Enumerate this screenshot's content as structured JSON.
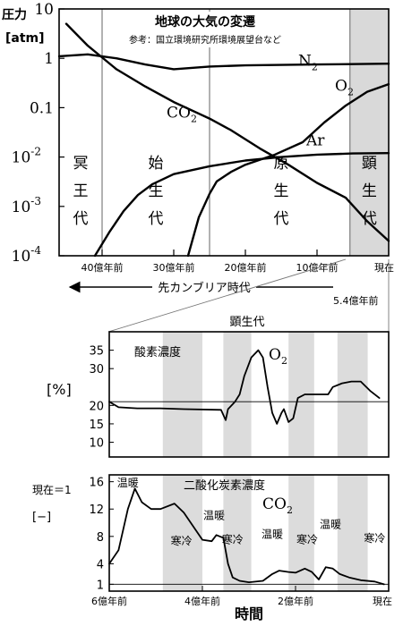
{
  "chart_data": [
    {
      "type": "line",
      "title": "地球の大気の変遷",
      "subtitle": "参考：国立環境研究所環境展望台など",
      "ylabel_line1": "圧力",
      "ylabel_line2": "[atm]",
      "y_scale": "log",
      "ylim": [
        0.0001,
        10
      ],
      "y_ticks": [
        {
          "value": 10,
          "base": "10",
          "exp": ""
        },
        {
          "value": 1,
          "base": "1",
          "exp": ""
        },
        {
          "value": 0.1,
          "base": "0.1",
          "exp": ""
        },
        {
          "value": 0.01,
          "base": "10",
          "exp": "-2"
        },
        {
          "value": 0.001,
          "base": "10",
          "exp": "-3"
        },
        {
          "value": 0.0001,
          "base": "10",
          "exp": "-4"
        }
      ],
      "xlim": [
        46,
        0
      ],
      "x_ticks": [
        {
          "value": 40,
          "label": "40億年前"
        },
        {
          "value": 30,
          "label": "30億年前"
        },
        {
          "value": 20,
          "label": "20億年前"
        },
        {
          "value": 10,
          "label": "10億年前"
        },
        {
          "value": 0,
          "label": "現在"
        }
      ],
      "era_boundaries": [
        40,
        25,
        5.4
      ],
      "eras": [
        {
          "name": "冥王代",
          "chars": [
            "冥",
            "王",
            "代"
          ],
          "x": 43
        },
        {
          "name": "始生代",
          "chars": [
            "始",
            "生",
            "代"
          ],
          "x": 32.5
        },
        {
          "name": "原生代",
          "chars": [
            "原",
            "生",
            "代"
          ],
          "x": 15
        },
        {
          "name": "顕生代",
          "chars": [
            "顕",
            "生",
            "代"
          ],
          "x": 2.7,
          "shaded": true
        }
      ],
      "arrow_label": "先カンブリア時代",
      "boundary_label": "5.4億年前",
      "series": [
        {
          "name": "N",
          "sub": "2",
          "points": [
            [
              46,
              1.1
            ],
            [
              42,
              1.2
            ],
            [
              38,
              1.0
            ],
            [
              34,
              0.75
            ],
            [
              30,
              0.6
            ],
            [
              25,
              0.68
            ],
            [
              20,
              0.72
            ],
            [
              10,
              0.75
            ],
            [
              0,
              0.78
            ]
          ]
        },
        {
          "name": "CO",
          "sub": "2",
          "points": [
            [
              45,
              5
            ],
            [
              42,
              1.8
            ],
            [
              38,
              0.6
            ],
            [
              34,
              0.27
            ],
            [
              30,
              0.13
            ],
            [
              25,
              0.06
            ],
            [
              22,
              0.035
            ],
            [
              18,
              0.015
            ],
            [
              14,
              0.007
            ],
            [
              10,
              0.003
            ],
            [
              6,
              0.0015
            ],
            [
              3,
              0.0005
            ],
            [
              0,
              0.0002
            ]
          ]
        },
        {
          "name": "O",
          "sub": "2",
          "points": [
            [
              28,
              0.0001
            ],
            [
              26.5,
              0.0006
            ],
            [
              25,
              0.0018
            ],
            [
              24,
              0.0032
            ],
            [
              22,
              0.005
            ],
            [
              20,
              0.007
            ],
            [
              16,
              0.011
            ],
            [
              12,
              0.02
            ],
            [
              9,
              0.05
            ],
            [
              6,
              0.11
            ],
            [
              3,
              0.21
            ],
            [
              0,
              0.3
            ]
          ]
        },
        {
          "name": "Ar",
          "sub": "",
          "points": [
            [
              41,
              0.0001
            ],
            [
              39,
              0.0003
            ],
            [
              37,
              0.0008
            ],
            [
              35,
              0.0017
            ],
            [
              33,
              0.0028
            ],
            [
              30,
              0.0045
            ],
            [
              25,
              0.0065
            ],
            [
              20,
              0.0085
            ],
            [
              15,
              0.01
            ],
            [
              10,
              0.0112
            ],
            [
              5,
              0.0118
            ],
            [
              0,
              0.012
            ]
          ]
        }
      ]
    },
    {
      "type": "line",
      "title": "顕生代",
      "series_label": "酸素濃度",
      "gas": "O",
      "gas_sub": "2",
      "ylabel": "[%]",
      "xlim": [
        6,
        0
      ],
      "ylim": [
        6,
        40
      ],
      "y_ticks": [
        35,
        30,
        20,
        15,
        10
      ],
      "reference_line": 21,
      "shaded_bands": [
        [
          4.85,
          4.0
        ],
        [
          3.55,
          2.95
        ],
        [
          2.15,
          1.6
        ],
        [
          1.1,
          0.45
        ]
      ],
      "series": [
        {
          "name": "酸素濃度",
          "points": [
            [
              6,
              21
            ],
            [
              5.8,
              19.5
            ],
            [
              5.4,
              19.2
            ],
            [
              4.9,
              19.2
            ],
            [
              4.4,
              19
            ],
            [
              3.6,
              18.8
            ],
            [
              3.5,
              16
            ],
            [
              3.45,
              19
            ],
            [
              3.3,
              21
            ],
            [
              3.2,
              23
            ],
            [
              3.1,
              28
            ],
            [
              2.95,
              33
            ],
            [
              2.8,
              35
            ],
            [
              2.7,
              33
            ],
            [
              2.6,
              25
            ],
            [
              2.5,
              18
            ],
            [
              2.4,
              15
            ],
            [
              2.3,
              18
            ],
            [
              2.25,
              19
            ],
            [
              2.15,
              15.5
            ],
            [
              2.05,
              16.5
            ],
            [
              1.95,
              22
            ],
            [
              1.8,
              23
            ],
            [
              1.3,
              23
            ],
            [
              1.2,
              25
            ],
            [
              1.0,
              26
            ],
            [
              0.8,
              26.5
            ],
            [
              0.6,
              26.5
            ],
            [
              0.4,
              24
            ],
            [
              0.2,
              22
            ]
          ]
        }
      ]
    },
    {
      "type": "line",
      "title": "二酸化炭素濃度",
      "gas": "CO",
      "gas_sub": "2",
      "ylabel_line1": "現在＝1",
      "ylabel_line2": "[−]",
      "xlim": [
        6,
        0
      ],
      "ylim": [
        0,
        17
      ],
      "y_ticks": [
        16,
        12,
        8,
        4,
        1
      ],
      "reference_line": 1,
      "x_ticks": [
        {
          "value": 6,
          "label": "6億年前"
        },
        {
          "value": 4,
          "label": "4億年前"
        },
        {
          "value": 2,
          "label": "2億年前"
        },
        {
          "value": 0,
          "label": "現在"
        }
      ],
      "xlabel": "時間",
      "shaded_bands": [
        [
          4.85,
          4.0
        ],
        [
          3.55,
          2.95
        ],
        [
          2.15,
          1.6
        ],
        [
          1.1,
          0.45
        ]
      ],
      "climate_labels": [
        {
          "text": "温暖",
          "x": 5.6,
          "y": 15.3
        },
        {
          "text": "寒冷",
          "x": 4.45,
          "y": 6.8
        },
        {
          "text": "温暖",
          "x": 3.75,
          "y": 10.5
        },
        {
          "text": "寒冷",
          "x": 3.35,
          "y": 7.0
        },
        {
          "text": "温暖",
          "x": 2.5,
          "y": 7.8
        },
        {
          "text": "寒冷",
          "x": 1.75,
          "y": 7.0
        },
        {
          "text": "温暖",
          "x": 1.25,
          "y": 9.2
        },
        {
          "text": "寒冷",
          "x": 0.3,
          "y": 7.2
        }
      ],
      "series": [
        {
          "name": "二酸化炭素濃度",
          "points": [
            [
              6,
              4
            ],
            [
              5.8,
              6
            ],
            [
              5.6,
              12
            ],
            [
              5.45,
              15
            ],
            [
              5.3,
              13
            ],
            [
              5.1,
              12
            ],
            [
              4.9,
              12
            ],
            [
              4.6,
              12.8
            ],
            [
              4.4,
              11.5
            ],
            [
              4.2,
              9.5
            ],
            [
              4.0,
              7.5
            ],
            [
              3.8,
              7.3
            ],
            [
              3.7,
              8.2
            ],
            [
              3.55,
              7.8
            ],
            [
              3.45,
              4
            ],
            [
              3.35,
              2
            ],
            [
              3.2,
              1.5
            ],
            [
              3.0,
              1.3
            ],
            [
              2.7,
              1.5
            ],
            [
              2.5,
              2.5
            ],
            [
              2.35,
              3
            ],
            [
              2.15,
              2.8
            ],
            [
              2.0,
              2.7
            ],
            [
              1.8,
              3.3
            ],
            [
              1.65,
              2.8
            ],
            [
              1.5,
              1.7
            ],
            [
              1.35,
              3.5
            ],
            [
              1.2,
              3.3
            ],
            [
              1.05,
              2.5
            ],
            [
              0.85,
              2.0
            ],
            [
              0.6,
              1.6
            ],
            [
              0.3,
              1.4
            ],
            [
              0.1,
              1.0
            ]
          ]
        }
      ]
    }
  ]
}
